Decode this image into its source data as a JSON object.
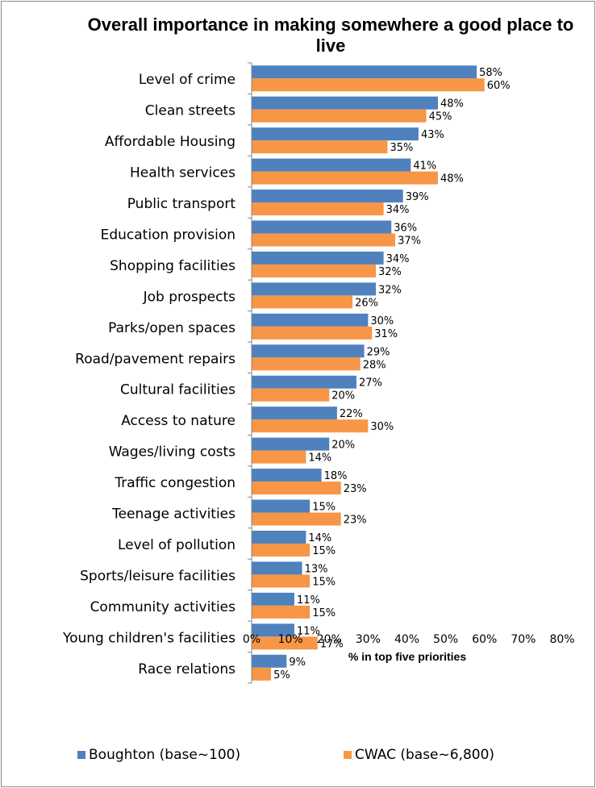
{
  "chart_data": {
    "type": "bar",
    "orientation": "horizontal",
    "title": "Overall importance in making somewhere a good place to live",
    "xlabel": "% in top five priorities",
    "ylabel": "",
    "xlim": [
      0,
      80
    ],
    "x_ticks": [
      "0%",
      "10%",
      "20%",
      "30%",
      "40%",
      "50%",
      "60%",
      "70%",
      "80%"
    ],
    "grid": false,
    "legend_position": "bottom",
    "categories": [
      "Level of crime",
      "Clean streets",
      "Affordable Housing",
      "Health services",
      "Public transport",
      "Education provision",
      "Shopping facilities",
      "Job prospects",
      "Parks/open spaces",
      "Road/pavement repairs",
      "Cultural facilities",
      "Access to nature",
      "Wages/living costs",
      "Traffic congestion",
      "Teenage activities",
      "Level of pollution",
      "Sports/leisure facilities",
      "Community activities",
      "Young children's facilities",
      "Race relations"
    ],
    "series": [
      {
        "name": "Boughton (base~100)",
        "color": "#4f81bd",
        "values": [
          58,
          48,
          43,
          41,
          39,
          36,
          34,
          32,
          30,
          29,
          27,
          22,
          20,
          18,
          15,
          14,
          13,
          11,
          11,
          9
        ],
        "labels": [
          "58%",
          "48%",
          "43%",
          "41%",
          "39%",
          "36%",
          "34%",
          "32%",
          "30%",
          "29%",
          "27%",
          "22%",
          "20%",
          "18%",
          "15%",
          "14%",
          "13%",
          "11%",
          "11%",
          "9%"
        ]
      },
      {
        "name": "CWAC (base~6,800)",
        "color": "#f79646",
        "values": [
          60,
          45,
          35,
          48,
          34,
          37,
          32,
          26,
          31,
          28,
          20,
          30,
          14,
          23,
          23,
          15,
          15,
          15,
          17,
          5
        ],
        "labels": [
          "60%",
          "45%",
          "35%",
          "48%",
          "34%",
          "37%",
          "32%",
          "26%",
          "31%",
          "28%",
          "20%",
          "30%",
          "14%",
          "23%",
          "23%",
          "15%",
          "15%",
          "15%",
          "17%",
          "5%"
        ]
      }
    ]
  }
}
